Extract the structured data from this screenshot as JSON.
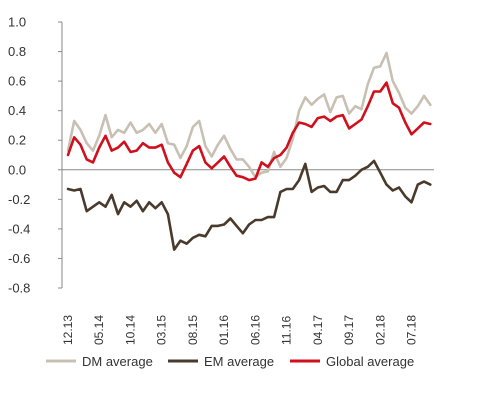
{
  "chart_data": {
    "type": "line",
    "title": "",
    "xlabel": "",
    "ylabel": "",
    "ylim": [
      -0.8,
      1.0
    ],
    "yticks": [
      "1.0",
      "0.8",
      "0.6",
      "0.4",
      "0.2",
      "0.0",
      "-0.2",
      "-0.4",
      "-0.6",
      "-0.8"
    ],
    "grid": false,
    "legend_position": "bottom",
    "x_tick_labels": [
      "12.13",
      "05.14",
      "10.14",
      "03.15",
      "08.15",
      "01.16",
      "06.16",
      "11.16",
      "04.17",
      "09.17",
      "02.18",
      "07.18"
    ],
    "x_tick_index": [
      0,
      5,
      10,
      15,
      20,
      25,
      30,
      35,
      40,
      45,
      50,
      55
    ],
    "x": [
      "12.13",
      "01.14",
      "02.14",
      "03.14",
      "04.14",
      "05.14",
      "06.14",
      "07.14",
      "08.14",
      "09.14",
      "10.14",
      "11.14",
      "12.14",
      "01.15",
      "02.15",
      "03.15",
      "04.15",
      "05.15",
      "06.15",
      "07.15",
      "08.15",
      "09.15",
      "10.15",
      "11.15",
      "12.15",
      "01.16",
      "02.16",
      "03.16",
      "04.16",
      "05.16",
      "06.16",
      "07.16",
      "08.16",
      "09.16",
      "10.16",
      "11.16",
      "12.16",
      "01.17",
      "02.17",
      "03.17",
      "04.17",
      "05.17",
      "06.17",
      "07.17",
      "08.17",
      "09.17",
      "10.17",
      "11.17",
      "12.17",
      "01.18",
      "02.18",
      "03.18",
      "04.18",
      "05.18",
      "06.18",
      "07.18",
      "08.18",
      "09.18",
      "10.18"
    ],
    "series": [
      {
        "name": "DM average",
        "color": "#c9c0b4",
        "values": [
          0.13,
          0.33,
          0.27,
          0.18,
          0.13,
          0.23,
          0.37,
          0.22,
          0.27,
          0.25,
          0.32,
          0.25,
          0.27,
          0.31,
          0.25,
          0.31,
          0.18,
          0.17,
          0.08,
          0.16,
          0.29,
          0.33,
          0.16,
          0.09,
          0.17,
          0.23,
          0.14,
          0.07,
          0.07,
          0.02,
          -0.05,
          -0.02,
          -0.01,
          0.12,
          0.02,
          0.08,
          0.21,
          0.4,
          0.49,
          0.44,
          0.48,
          0.51,
          0.39,
          0.49,
          0.5,
          0.38,
          0.43,
          0.41,
          0.58,
          0.69,
          0.7,
          0.79,
          0.6,
          0.52,
          0.42,
          0.38,
          0.43,
          0.5,
          0.44
        ]
      },
      {
        "name": "EM average",
        "color": "#4a3a2c",
        "values": [
          -0.13,
          -0.14,
          -0.13,
          -0.28,
          -0.25,
          -0.22,
          -0.25,
          -0.17,
          -0.3,
          -0.22,
          -0.25,
          -0.21,
          -0.28,
          -0.22,
          -0.26,
          -0.22,
          -0.3,
          -0.54,
          -0.48,
          -0.5,
          -0.46,
          -0.44,
          -0.45,
          -0.38,
          -0.38,
          -0.37,
          -0.33,
          -0.38,
          -0.43,
          -0.37,
          -0.34,
          -0.34,
          -0.32,
          -0.32,
          -0.15,
          -0.13,
          -0.13,
          -0.07,
          0.04,
          -0.15,
          -0.12,
          -0.11,
          -0.15,
          -0.15,
          -0.07,
          -0.07,
          -0.04,
          0.0,
          0.02,
          0.06,
          -0.02,
          -0.1,
          -0.14,
          -0.12,
          -0.18,
          -0.22,
          -0.1,
          -0.08,
          -0.1
        ]
      },
      {
        "name": "Global average",
        "color": "#d0101c",
        "values": [
          0.1,
          0.22,
          0.17,
          0.07,
          0.05,
          0.15,
          0.23,
          0.13,
          0.15,
          0.19,
          0.12,
          0.13,
          0.18,
          0.15,
          0.15,
          0.17,
          0.05,
          -0.02,
          -0.05,
          0.04,
          0.13,
          0.16,
          0.05,
          0.01,
          0.05,
          0.09,
          0.02,
          -0.04,
          -0.05,
          -0.07,
          -0.06,
          0.05,
          0.02,
          0.08,
          0.1,
          0.15,
          0.25,
          0.32,
          0.31,
          0.29,
          0.35,
          0.36,
          0.33,
          0.36,
          0.37,
          0.28,
          0.31,
          0.34,
          0.43,
          0.53,
          0.53,
          0.59,
          0.45,
          0.42,
          0.32,
          0.24,
          0.28,
          0.32,
          0.31
        ]
      }
    ]
  }
}
